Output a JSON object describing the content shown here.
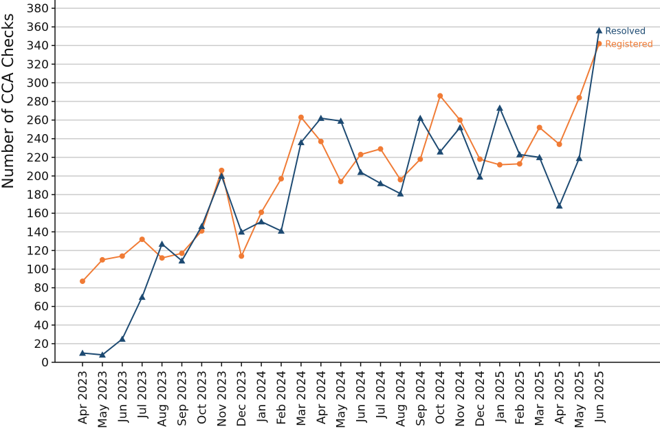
{
  "chart_data": {
    "type": "line",
    "title": "",
    "xlabel": "",
    "ylabel": "Number of CCA Checks",
    "ylim": [
      0,
      380
    ],
    "yticks": [
      0,
      20,
      40,
      60,
      80,
      100,
      120,
      140,
      160,
      180,
      200,
      220,
      240,
      260,
      280,
      300,
      320,
      340,
      360,
      380
    ],
    "grid": "horizontal",
    "legend": "inline labels at series ends",
    "categories": [
      "Apr 2023",
      "May 2023",
      "Jun 2023",
      "Jul 2023",
      "Aug 2023",
      "Sep 2023",
      "Oct 2023",
      "Nov 2023",
      "Dec 2023",
      "Jan 2024",
      "Feb 2024",
      "Mar 2024",
      "Apr 2024",
      "May 2024",
      "Jun 2024",
      "Jul 2024",
      "Aug 2024",
      "Sep 2024",
      "Oct 2024",
      "Nov 2024",
      "Dec 2024",
      "Jan 2025",
      "Feb 2025",
      "Mar 2025",
      "Apr 2025",
      "May 2025",
      "Jun 2025"
    ],
    "series": [
      {
        "name": "Resolved",
        "color": "#1d4a72",
        "marker": "triangle",
        "values": [
          10,
          8,
          25,
          70,
          127,
          109,
          146,
          200,
          140,
          151,
          141,
          236,
          262,
          259,
          204,
          192,
          181,
          262,
          226,
          252,
          199,
          273,
          223,
          220,
          168,
          219,
          356
        ]
      },
      {
        "name": "Registered",
        "color": "#f07b35",
        "marker": "circle",
        "values": [
          87,
          110,
          114,
          132,
          112,
          117,
          141,
          206,
          114,
          161,
          197,
          263,
          237,
          194,
          223,
          229,
          196,
          218,
          286,
          260,
          218,
          212,
          213,
          252,
          234,
          284,
          342
        ]
      }
    ]
  }
}
